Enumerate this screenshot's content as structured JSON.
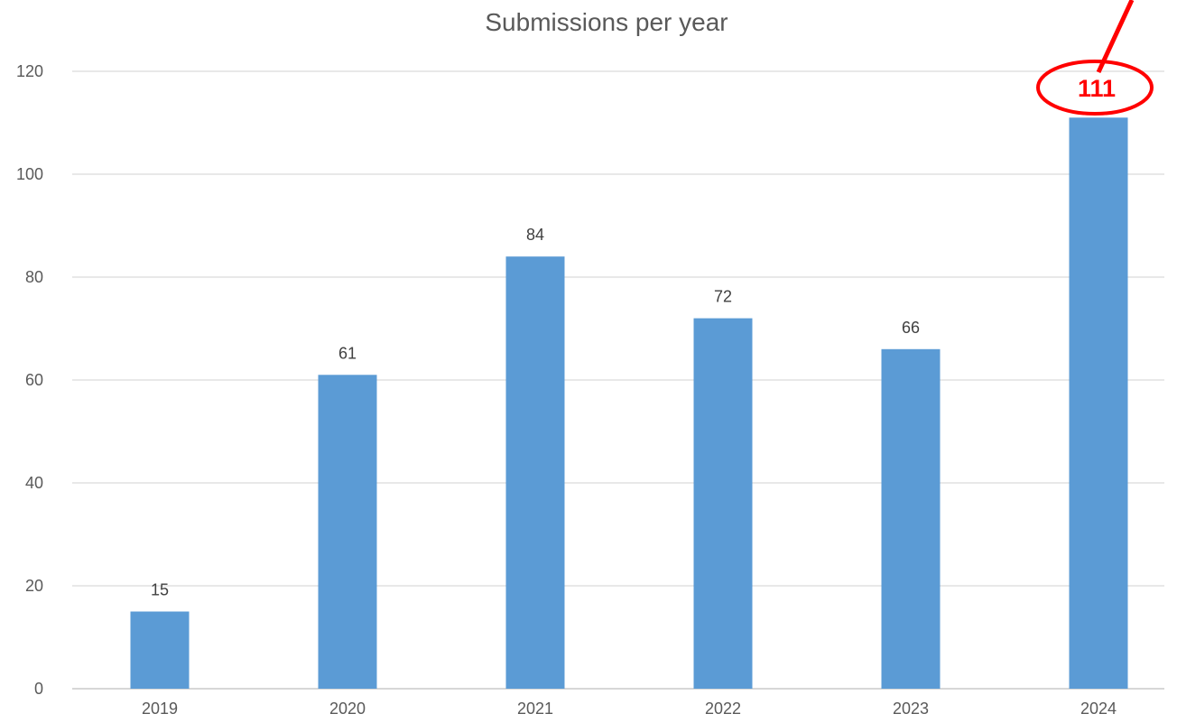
{
  "chart_data": {
    "type": "bar",
    "title": "Submissions per year",
    "xlabel": "",
    "ylabel": "",
    "categories": [
      "2019",
      "2020",
      "2021",
      "2022",
      "2023",
      "2024"
    ],
    "values": [
      15,
      61,
      84,
      72,
      66,
      111
    ],
    "ylim": [
      0,
      120
    ],
    "yticks": [
      "0",
      "20",
      "40",
      "60",
      "80",
      "100",
      "120"
    ],
    "grid": true,
    "legend": "none",
    "bar_color": "#5b9bd5",
    "highlight": {
      "category": "2024",
      "label": "111",
      "color": "#ff0000"
    }
  }
}
